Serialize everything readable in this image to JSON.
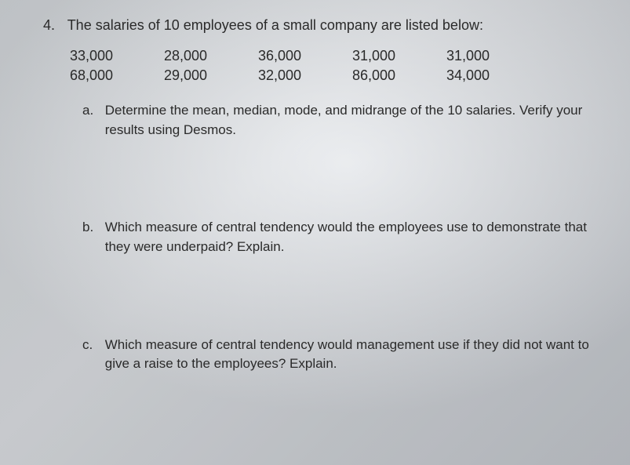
{
  "question": {
    "number": "4.",
    "prompt": "The salaries of 10 employees of a small company are listed below:"
  },
  "salaries": {
    "row1": [
      "33,000",
      "28,000",
      "36,000",
      "31,000",
      "31,000"
    ],
    "row2": [
      "68,000",
      "29,000",
      "32,000",
      "86,000",
      "34,000"
    ]
  },
  "subparts": [
    {
      "letter": "a.",
      "text": "Determine the mean, median, mode, and midrange of the 10 salaries. Verify your results using Desmos."
    },
    {
      "letter": "b.",
      "text": "Which measure of central tendency would the employees use to demonstrate that they were underpaid? Explain."
    },
    {
      "letter": "c.",
      "text": "Which measure of central tendency would management use if they did not want to give a raise to the employees? Explain."
    }
  ],
  "style": {
    "text_color": "#2a2a2a",
    "bg_gradient_start": "#d8dce0",
    "bg_gradient_end": "#c8ccd2",
    "font_family": "Arial, Helvetica, sans-serif",
    "title_fontsize": 18,
    "body_fontsize": 17
  }
}
